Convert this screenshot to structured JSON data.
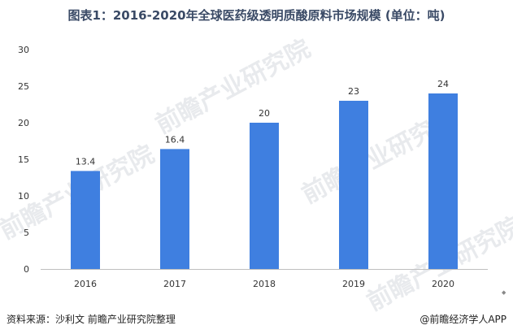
{
  "title": "图表1：2016-2020年全球医药级透明质酸原料市场规模 (单位：吨)",
  "source": "资料来源：沙利文 前瞻产业研究院整理",
  "brand": "@前瞻经济学人APP",
  "watermark": "前瞻产业研究院",
  "colors": {
    "bar": "#3f7fe0",
    "axis": "#bfbfbf",
    "text": "#333333"
  },
  "chart_data": {
    "type": "bar",
    "categories": [
      "2016",
      "2017",
      "2018",
      "2019",
      "2020"
    ],
    "values": [
      13.4,
      16.4,
      20,
      23,
      24
    ],
    "value_labels": [
      "13.4",
      "16.4",
      "20",
      "23",
      "24"
    ],
    "title": "图表1：2016-2020年全球医药级透明质酸原料市场规模 (单位：吨)",
    "xlabel": "",
    "ylabel": "",
    "ylim": [
      0,
      30
    ],
    "yticks": [
      0,
      5,
      10,
      15,
      20,
      25,
      30
    ],
    "grid": false,
    "legend": "none"
  }
}
